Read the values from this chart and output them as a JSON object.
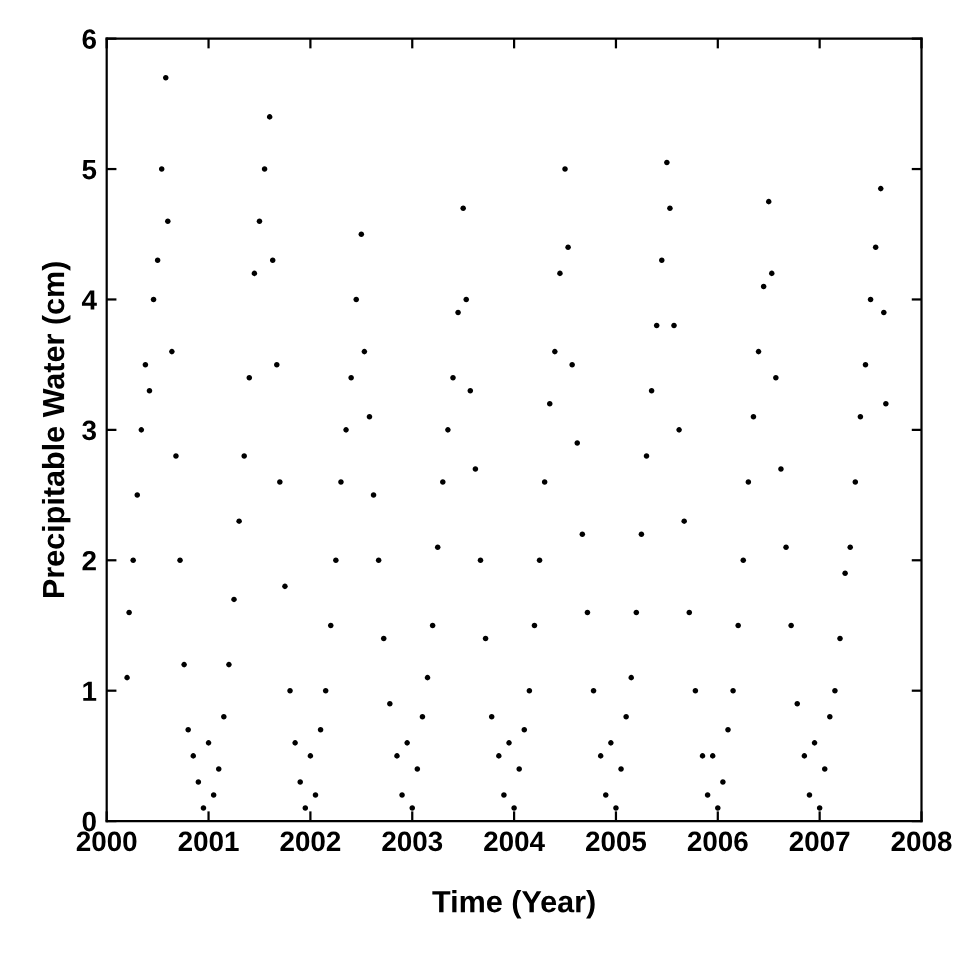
{
  "chart_data": {
    "type": "scatter",
    "xlabel": "Time (Year)",
    "ylabel": "Precipitable Water (cm)",
    "x": [
      2000.2,
      2000.22,
      2000.26,
      2000.3,
      2000.34,
      2000.38,
      2000.42,
      2000.46,
      2000.5,
      2000.54,
      2000.58,
      2000.6,
      2000.64,
      2000.68,
      2000.72,
      2000.76,
      2000.8,
      2000.85,
      2000.9,
      2000.95,
      2001.0,
      2001.05,
      2001.1,
      2001.15,
      2001.2,
      2001.25,
      2001.3,
      2001.35,
      2001.4,
      2001.45,
      2001.5,
      2001.55,
      2001.6,
      2001.63,
      2001.67,
      2001.7,
      2001.75,
      2001.8,
      2001.85,
      2001.9,
      2001.95,
      2002.0,
      2002.05,
      2002.1,
      2002.15,
      2002.2,
      2002.25,
      2002.3,
      2002.35,
      2002.4,
      2002.45,
      2002.5,
      2002.53,
      2002.58,
      2002.62,
      2002.67,
      2002.72,
      2002.78,
      2002.85,
      2002.9,
      2002.95,
      2003.0,
      2003.05,
      2003.1,
      2003.15,
      2003.2,
      2003.25,
      2003.3,
      2003.35,
      2003.4,
      2003.45,
      2003.5,
      2003.53,
      2003.57,
      2003.62,
      2003.67,
      2003.72,
      2003.78,
      2003.85,
      2003.9,
      2003.95,
      2004.0,
      2004.05,
      2004.1,
      2004.15,
      2004.2,
      2004.25,
      2004.3,
      2004.35,
      2004.4,
      2004.45,
      2004.5,
      2004.53,
      2004.57,
      2004.62,
      2004.67,
      2004.72,
      2004.78,
      2004.85,
      2004.9,
      2004.95,
      2005.0,
      2005.05,
      2005.1,
      2005.15,
      2005.2,
      2005.25,
      2005.3,
      2005.35,
      2005.4,
      2005.45,
      2005.5,
      2005.53,
      2005.57,
      2005.62,
      2005.67,
      2005.72,
      2005.78,
      2005.85,
      2005.9,
      2005.95,
      2006.0,
      2006.05,
      2006.1,
      2006.15,
      2006.2,
      2006.25,
      2006.3,
      2006.35,
      2006.4,
      2006.45,
      2006.5,
      2006.53,
      2006.57,
      2006.62,
      2006.67,
      2006.72,
      2006.78,
      2006.85,
      2006.9,
      2006.95,
      2007.0,
      2007.05,
      2007.1,
      2007.15,
      2007.2,
      2007.25,
      2007.3,
      2007.35,
      2007.4,
      2007.45,
      2007.5,
      2007.55,
      2007.6,
      2007.63,
      2007.65
    ],
    "series": [
      {
        "color": "#000000",
        "values": [
          1.1,
          1.6,
          2.0,
          2.5,
          3.0,
          3.5,
          3.3,
          4.0,
          4.3,
          5.0,
          5.7,
          4.6,
          3.6,
          2.8,
          2.0,
          1.2,
          0.7,
          0.5,
          0.3,
          0.1,
          0.6,
          0.2,
          0.4,
          0.8,
          1.2,
          1.7,
          2.3,
          2.8,
          3.4,
          4.2,
          4.6,
          5.0,
          5.4,
          4.3,
          3.5,
          2.6,
          1.8,
          1.0,
          0.6,
          0.3,
          0.1,
          0.5,
          0.2,
          0.7,
          1.0,
          1.5,
          2.0,
          2.6,
          3.0,
          3.4,
          4.0,
          4.5,
          3.6,
          3.1,
          2.5,
          2.0,
          1.4,
          0.9,
          0.5,
          0.2,
          0.6,
          0.1,
          0.4,
          0.8,
          1.1,
          1.5,
          2.1,
          2.6,
          3.0,
          3.4,
          3.9,
          4.7,
          4.0,
          3.3,
          2.7,
          2.0,
          1.4,
          0.8,
          0.5,
          0.2,
          0.6,
          0.1,
          0.4,
          0.7,
          1.0,
          1.5,
          2.0,
          2.6,
          3.2,
          3.6,
          4.2,
          5.0,
          4.4,
          3.5,
          2.9,
          2.2,
          1.6,
          1.0,
          0.5,
          0.2,
          0.6,
          0.1,
          0.4,
          0.8,
          1.1,
          1.6,
          2.2,
          2.8,
          3.3,
          3.8,
          4.3,
          5.05,
          4.7,
          3.8,
          3.0,
          2.3,
          1.6,
          1.0,
          0.5,
          0.2,
          0.5,
          0.1,
          0.3,
          0.7,
          1.0,
          1.5,
          2.0,
          2.6,
          3.1,
          3.6,
          4.1,
          4.75,
          4.2,
          3.4,
          2.7,
          2.1,
          1.5,
          0.9,
          0.5,
          0.2,
          0.6,
          0.1,
          0.4,
          0.8,
          1.0,
          1.4,
          1.9,
          2.1,
          2.6,
          3.1,
          3.5,
          4.0,
          4.4,
          4.85,
          3.9,
          3.2
        ]
      }
    ],
    "xlim": [
      2000,
      2008
    ],
    "xticks": [
      2000,
      2001,
      2002,
      2003,
      2004,
      2005,
      2006,
      2007,
      2008
    ],
    "ylim": [
      0,
      6
    ],
    "yticks": [
      0,
      1,
      2,
      3,
      4,
      5,
      6
    ],
    "marker": "circle",
    "grid": false,
    "legend": false
  }
}
